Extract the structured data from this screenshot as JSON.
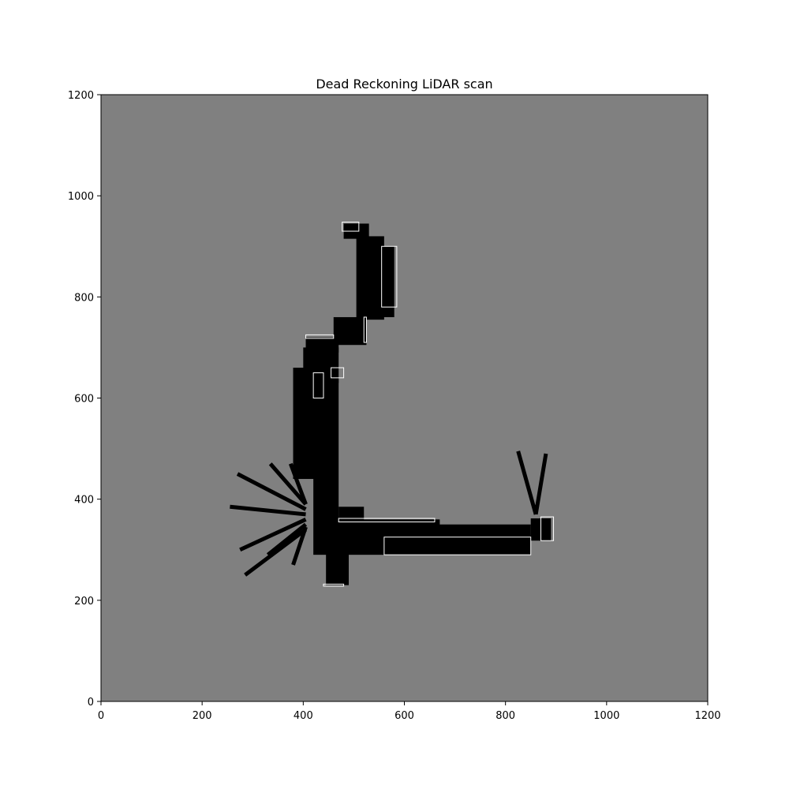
{
  "chart_data": {
    "type": "heatmap",
    "title": "Dead Reckoning LiDAR scan",
    "xlabel": "",
    "ylabel": "",
    "xlim": [
      0,
      1200
    ],
    "ylim": [
      1200,
      0
    ],
    "x_ticks": [
      0,
      200,
      400,
      600,
      800,
      1000,
      1200
    ],
    "y_ticks": [
      0,
      200,
      400,
      600,
      800,
      1000,
      1200
    ],
    "grid": false,
    "legend": "none",
    "colormap": {
      "unknown": "#808080",
      "free": "#000000",
      "occupied": "#ffffff"
    },
    "free_regions": [
      {
        "x": [
          445,
          490
        ],
        "y": [
          230,
          300
        ]
      },
      {
        "x": [
          460,
          850
        ],
        "y": [
          290,
          350
        ]
      },
      {
        "x": [
          850,
          890
        ],
        "y": [
          318,
          362
        ]
      },
      {
        "x": [
          460,
          670
        ],
        "y": [
          345,
          360
        ]
      },
      {
        "x": [
          470,
          520
        ],
        "y": [
          350,
          385
        ]
      },
      {
        "x": [
          420,
          470
        ],
        "y": [
          290,
          640
        ]
      },
      {
        "x": [
          380,
          440
        ],
        "y": [
          440,
          660
        ]
      },
      {
        "x": [
          400,
          470
        ],
        "y": [
          630,
          700
        ]
      },
      {
        "x": [
          405,
          470
        ],
        "y": [
          690,
          720
        ]
      },
      {
        "x": [
          460,
          525
        ],
        "y": [
          705,
          760
        ]
      },
      {
        "x": [
          505,
          560
        ],
        "y": [
          755,
          920
        ]
      },
      {
        "x": [
          540,
          580
        ],
        "y": [
          760,
          900
        ]
      },
      {
        "x": [
          480,
          530
        ],
        "y": [
          915,
          945
        ]
      }
    ],
    "scan_rays": [
      {
        "x": [
          405,
          285
        ],
        "y": [
          340,
          250
        ]
      },
      {
        "x": [
          405,
          275
        ],
        "y": [
          360,
          300
        ]
      },
      {
        "x": [
          405,
          255
        ],
        "y": [
          370,
          385
        ]
      },
      {
        "x": [
          405,
          270
        ],
        "y": [
          380,
          450
        ]
      },
      {
        "x": [
          405,
          335
        ],
        "y": [
          390,
          470
        ]
      },
      {
        "x": [
          405,
          375
        ],
        "y": [
          390,
          470
        ]
      },
      {
        "x": [
          405,
          330
        ],
        "y": [
          350,
          290
        ]
      },
      {
        "x": [
          405,
          380
        ],
        "y": [
          345,
          270
        ]
      },
      {
        "x": [
          860,
          825
        ],
        "y": [
          370,
          495
        ]
      },
      {
        "x": [
          860,
          880
        ],
        "y": [
          370,
          490
        ]
      }
    ],
    "occupied_boundaries": [
      {
        "x": [
          440,
          480
        ],
        "y": [
          228,
          232
        ]
      },
      {
        "x": [
          560,
          850
        ],
        "y": [
          290,
          325
        ]
      },
      {
        "x": [
          870,
          895
        ],
        "y": [
          318,
          365
        ]
      },
      {
        "x": [
          470,
          660
        ],
        "y": [
          355,
          362
        ]
      },
      {
        "x": [
          420,
          440
        ],
        "y": [
          600,
          650
        ]
      },
      {
        "x": [
          405,
          460
        ],
        "y": [
          718,
          725
        ]
      },
      {
        "x": [
          455,
          480
        ],
        "y": [
          640,
          660
        ]
      },
      {
        "x": [
          520,
          525
        ],
        "y": [
          710,
          760
        ]
      },
      {
        "x": [
          555,
          585
        ],
        "y": [
          780,
          900
        ]
      },
      {
        "x": [
          477,
          510
        ],
        "y": [
          930,
          948
        ]
      }
    ]
  }
}
